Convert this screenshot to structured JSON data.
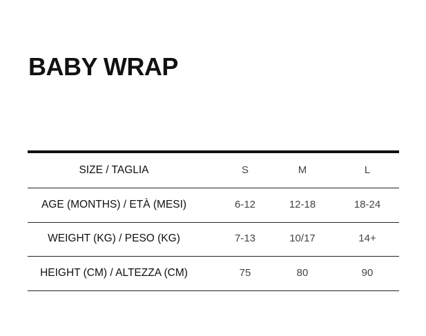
{
  "header": {
    "title": "BABY WRAP"
  },
  "table": {
    "header": [
      "SIZE / TAGLIA",
      "S",
      "M",
      "L"
    ],
    "rows": [
      [
        "AGE (MONTHS) / ETÀ (MESI)",
        "6-12",
        "12-18",
        "18-24"
      ],
      [
        "WEIGHT (KG) / PESO (KG)",
        "7-13",
        "10/17",
        "14+"
      ],
      [
        "HEIGHT (CM) / ALTEZZA (CM)",
        "75",
        "80",
        "90"
      ]
    ]
  }
}
